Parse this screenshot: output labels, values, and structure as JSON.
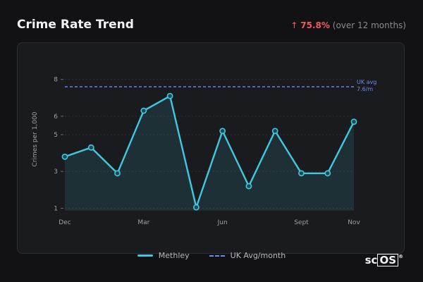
{
  "header": {
    "title": "Crime Rate Trend",
    "change_arrow": "↑",
    "change_pct": "75.8%",
    "change_note": "(over 12 months)"
  },
  "legend": {
    "series_label": "Methley",
    "ref_label": "UK Avg/month"
  },
  "brand": {
    "prefix": "sc",
    "boxed": "OS",
    "mark": "®"
  },
  "colors": {
    "series": "#3ec9e0",
    "reference": "#6a8df0",
    "increase": "#f25a5a"
  },
  "chart_data": {
    "type": "area",
    "title": "Crime Rate Trend",
    "xlabel": "",
    "ylabel": "Crimes per 1,000",
    "x_tick_labels": [
      {
        "index": 0,
        "label": "Dec"
      },
      {
        "index": 3,
        "label": "Mar"
      },
      {
        "index": 6,
        "label": "Jun"
      },
      {
        "index": 9,
        "label": "Sept"
      },
      {
        "index": 11,
        "label": "Nov"
      }
    ],
    "y_ticks": [
      1,
      3,
      5,
      6,
      8
    ],
    "ylim": [
      0.9,
      8.6
    ],
    "series": [
      {
        "name": "Methley",
        "values": [
          3.8,
          4.3,
          2.9,
          6.3,
          7.1,
          1.05,
          5.2,
          2.2,
          5.2,
          2.9,
          2.9,
          5.7
        ]
      }
    ],
    "reference_line": {
      "name": "UK Avg/month",
      "value": 7.6,
      "annotation": [
        "UK avg",
        "7.6/m"
      ]
    },
    "grid": true,
    "legend_position": "bottom"
  }
}
